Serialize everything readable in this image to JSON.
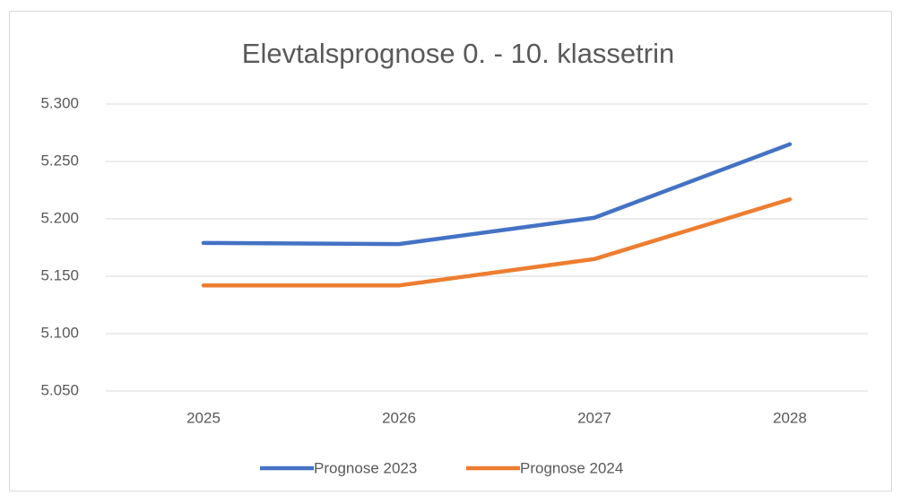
{
  "chart_data": {
    "type": "line",
    "title": "Elevtalsprognose 0. - 10. klassetrin",
    "categories": [
      "2025",
      "2026",
      "2027",
      "2028"
    ],
    "series": [
      {
        "name": "Prognose 2023",
        "color": "#4472c4",
        "values": [
          5179,
          5178,
          5201,
          5265
        ]
      },
      {
        "name": "Prognose 2024",
        "color": "#ed7d31",
        "values": [
          5142,
          5142,
          5165,
          5217
        ]
      }
    ],
    "ylim": [
      5050,
      5300
    ],
    "yticks": [
      {
        "value": 5050,
        "label": "5.050"
      },
      {
        "value": 5100,
        "label": "5.100"
      },
      {
        "value": 5150,
        "label": "5.150"
      },
      {
        "value": 5200,
        "label": "5.200"
      },
      {
        "value": 5250,
        "label": "5.250"
      },
      {
        "value": 5300,
        "label": "5.300"
      }
    ],
    "grid": true,
    "legend": "bottom"
  }
}
